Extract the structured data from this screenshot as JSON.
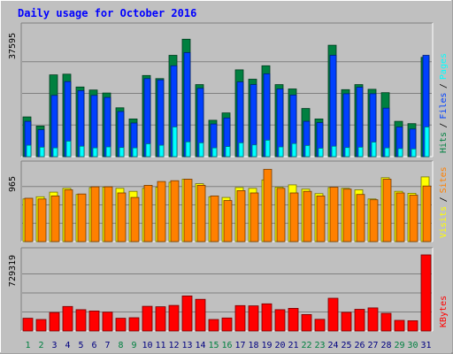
{
  "chart_data": {
    "type": "bar",
    "title": "Daily usage for October 2016",
    "categories": [
      "1",
      "2",
      "3",
      "4",
      "5",
      "6",
      "7",
      "8",
      "9",
      "10",
      "11",
      "12",
      "13",
      "14",
      "15",
      "16",
      "17",
      "18",
      "19",
      "20",
      "21",
      "22",
      "23",
      "24",
      "25",
      "26",
      "27",
      "28",
      "29",
      "30",
      "31"
    ],
    "weekend_days": [
      "1",
      "2",
      "8",
      "9",
      "15",
      "16",
      "22",
      "23",
      "29",
      "30"
    ],
    "panels": [
      {
        "id": "hits",
        "ymax_label": "37595",
        "ymax": 37595,
        "series": [
          {
            "name": "Hits",
            "color": "#008040",
            "values": [
              11800,
              9100,
              24300,
              24500,
              20700,
              19800,
              18900,
              14500,
              11200,
              24100,
              23200,
              30100,
              34900,
              21400,
              10800,
              13000,
              25800,
              23000,
              27000,
              21400,
              20100,
              14300,
              11200,
              33100,
              19900,
              21400,
              20000,
              19000,
              10500,
              9800,
              29500
            ]
          },
          {
            "name": "Files",
            "color": "#0040ff",
            "values": [
              10500,
              8000,
              18200,
              22300,
              19600,
              18200,
              17600,
              13400,
              10000,
              23200,
              22800,
              27000,
              30900,
              20300,
              9700,
              11500,
              22200,
              21400,
              24600,
              20100,
              18300,
              10500,
              10100,
              30100,
              18700,
              20600,
              18700,
              14400,
              8800,
              8200,
              30100
            ]
          },
          {
            "name": "Pages",
            "color": "#00ffff",
            "values": [
              3400,
              2800,
              2600,
              4600,
              3100,
              2600,
              2900,
              2700,
              2600,
              3800,
              3400,
              8800,
              4400,
              4100,
              2600,
              3000,
              4100,
              3500,
              4900,
              2900,
              3900,
              3300,
              2500,
              3100,
              2700,
              2800,
              4300,
              2600,
              2400,
              2300,
              8800
            ]
          }
        ],
        "legend": [
          {
            "text": "Hits",
            "color": "#008040"
          },
          {
            "text": "Files",
            "color": "#0040ff"
          },
          {
            "text": "Pages",
            "color": "#00ffff"
          }
        ]
      },
      {
        "id": "visits",
        "ymax_label": "965",
        "ymax": 965,
        "series": [
          {
            "name": "Visits",
            "color": "#ffff00",
            "values": [
              560,
              590,
              650,
              700,
              620,
              710,
              715,
              700,
              660,
              700,
              715,
              780,
              820,
              760,
              590,
              580,
              710,
              700,
              810,
              715,
              745,
              690,
              630,
              710,
              700,
              680,
              560,
              840,
              660,
              635,
              850
            ]
          },
          {
            "name": "Sites",
            "color": "#ff8000",
            "values": [
              570,
              560,
              600,
              680,
              625,
              720,
              720,
              640,
              580,
              740,
              790,
              800,
              820,
              740,
              600,
              540,
              670,
              640,
              950,
              700,
              640,
              660,
              600,
              715,
              690,
              620,
              550,
              820,
              640,
              610,
              730
            ]
          }
        ],
        "legend": [
          {
            "text": "Visits",
            "color": "#ffff00"
          },
          {
            "text": "Sites",
            "color": "#ff8000"
          }
        ]
      },
      {
        "id": "kbytes",
        "ymax_label": "729319",
        "ymax": 729319,
        "series": [
          {
            "name": "KBytes",
            "color": "#ff0000",
            "values": [
              122000,
              110000,
              177000,
              235000,
              204000,
              192000,
              181000,
              122000,
              127000,
              237000,
              232000,
              245000,
              336000,
              304000,
              110000,
              125000,
              243000,
              241000,
              260000,
              204000,
              217000,
              158000,
              112000,
              314000,
              179000,
              208000,
              221000,
              170000,
              102000,
              98000,
              729319
            ]
          }
        ],
        "legend": [
          {
            "text": "KBytes",
            "color": "#ff0000"
          }
        ]
      }
    ],
    "grid": true,
    "legend_position": "right-vertical",
    "colors": {
      "background": "#c0c0c0",
      "plot_background": "#c0c0c0",
      "title": "#0000ff",
      "weekday_label": "#000080",
      "weekend_label": "#008040",
      "gridline": "#808080"
    }
  }
}
